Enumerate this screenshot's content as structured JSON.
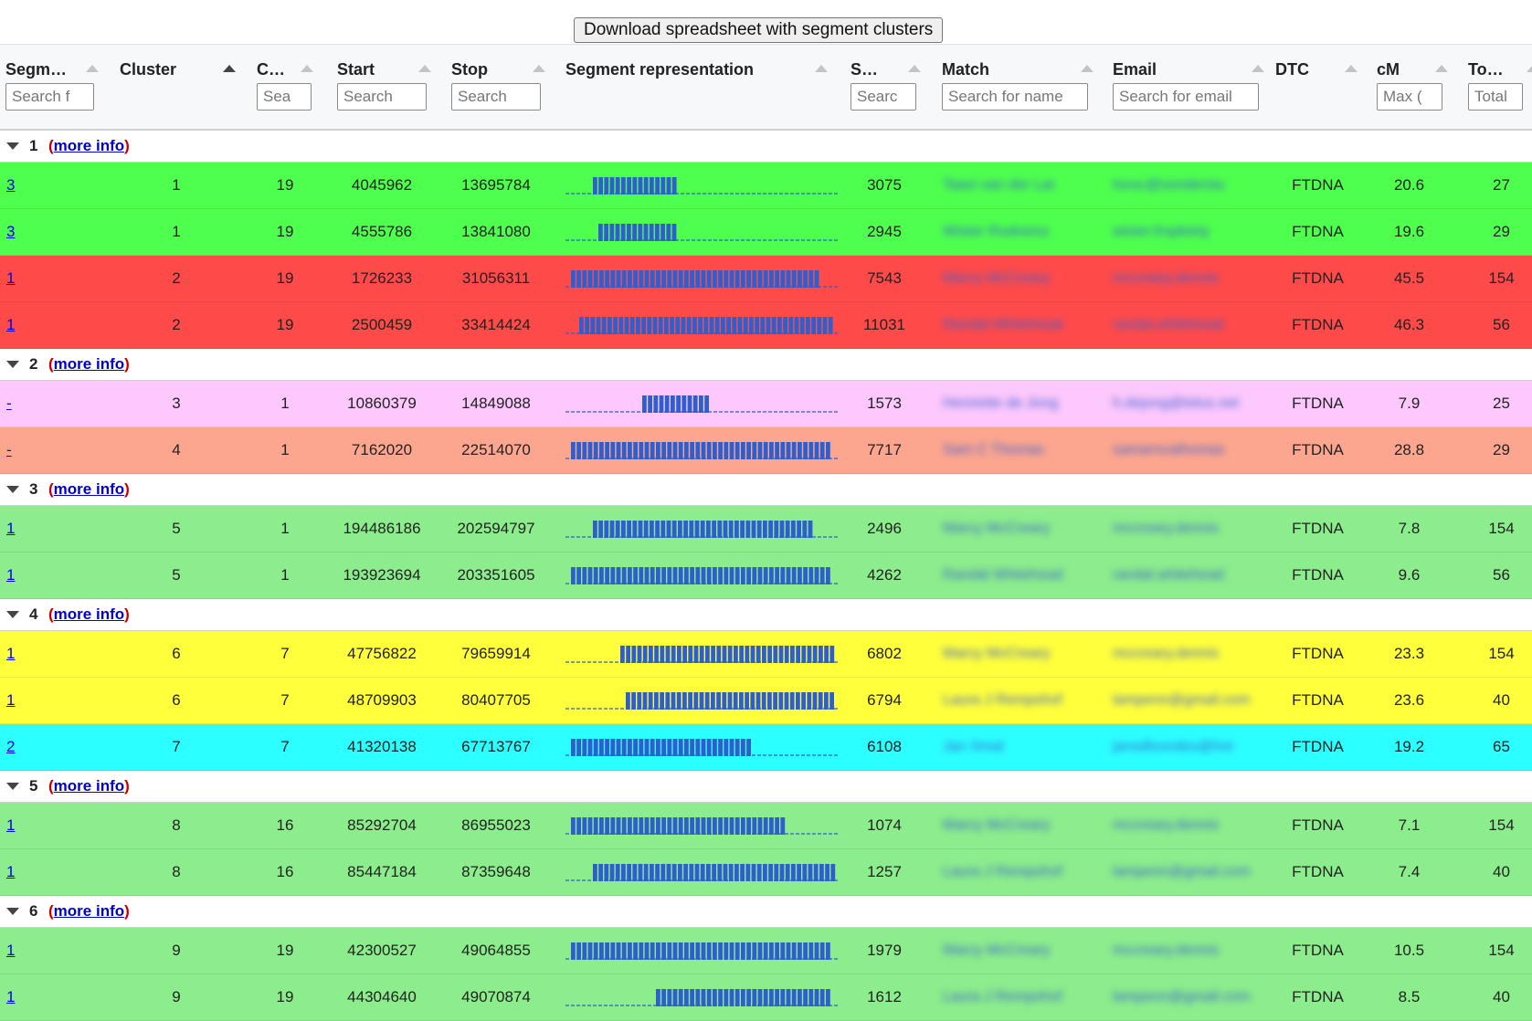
{
  "toolbar": {
    "download_label": "Download spreadsheet with segment clusters"
  },
  "columns": [
    {
      "key": "segm",
      "label": "Segm…",
      "placeholder": "Search f",
      "active": false
    },
    {
      "key": "cluster",
      "label": "Cluster",
      "placeholder": "",
      "active": true
    },
    {
      "key": "chrom",
      "label": "C…",
      "placeholder": "Sea",
      "active": false
    },
    {
      "key": "start",
      "label": "Start",
      "placeholder": "Search",
      "active": false
    },
    {
      "key": "stop",
      "label": "Stop",
      "placeholder": "Search",
      "active": false
    },
    {
      "key": "segrep",
      "label": "Segment representation",
      "placeholder": "",
      "active": false
    },
    {
      "key": "snps",
      "label": "S…",
      "placeholder": "Searc",
      "active": false
    },
    {
      "key": "match",
      "label": "Match",
      "placeholder": "Search for name",
      "active": false
    },
    {
      "key": "email",
      "label": "Email",
      "placeholder": "Search for email",
      "active": false
    },
    {
      "key": "dtc",
      "label": "DTC",
      "placeholder": "",
      "active": false
    },
    {
      "key": "cm",
      "label": "cM",
      "placeholder": "Max (",
      "active": false
    },
    {
      "key": "total",
      "label": "To…",
      "placeholder": "Total",
      "active": false
    }
  ],
  "colors": {
    "green_bright": "#4eff4e",
    "red": "#ff4a4a",
    "pink": "#fdc8fd",
    "salmon": "#fda68f",
    "green_light": "#8ced8c",
    "yellow": "#ffff3c",
    "cyan": "#2cffff",
    "segment_blue": "#2f5fcf"
  },
  "more_info_label": "more info",
  "groups": [
    {
      "num": "1",
      "rows": [
        {
          "segm": "3",
          "cluster": "1",
          "chrom": "19",
          "start": "4045962",
          "stop": "13695784",
          "seg": [
            0.1,
            0.4
          ],
          "snps": "3075",
          "match": "Taavi van der Lat",
          "email": "tsvsc@sonderstu",
          "dtc": "FTDNA",
          "cm": "20.6",
          "total": "27",
          "color": "green_bright"
        },
        {
          "segm": "3",
          "cluster": "1",
          "chrom": "19",
          "start": "4555786",
          "stop": "13841080",
          "seg": [
            0.12,
            0.4
          ],
          "snps": "2945",
          "match": "Wister Rodneiss",
          "email": "wister.fropkiety",
          "dtc": "FTDNA",
          "cm": "19.6",
          "total": "29",
          "color": "green_bright"
        },
        {
          "segm": "1",
          "cluster": "2",
          "chrom": "19",
          "start": "1726233",
          "stop": "31056311",
          "seg": [
            0.02,
            0.93
          ],
          "snps": "7543",
          "match": "Marcy McCreary",
          "email": "mccreary.dennis",
          "dtc": "FTDNA",
          "cm": "45.5",
          "total": "154",
          "color": "red"
        },
        {
          "segm": "1",
          "cluster": "2",
          "chrom": "19",
          "start": "2500459",
          "stop": "33414424",
          "seg": [
            0.05,
            0.98
          ],
          "snps": "11031",
          "match": "Randal Whitehead",
          "email": "randal.whitehead",
          "dtc": "FTDNA",
          "cm": "46.3",
          "total": "56",
          "color": "red"
        }
      ]
    },
    {
      "num": "2",
      "rows": [
        {
          "segm": "-",
          "cluster": "3",
          "chrom": "1",
          "start": "10860379",
          "stop": "14849088",
          "seg": [
            0.28,
            0.53
          ],
          "snps": "1573",
          "match": "Henriette de Jong",
          "email": "h.dejong@telus.net",
          "dtc": "FTDNA",
          "cm": "7.9",
          "total": "25",
          "color": "pink"
        },
        {
          "segm": "-",
          "cluster": "4",
          "chrom": "1",
          "start": "7162020",
          "stop": "22514070",
          "seg": [
            0.02,
            0.98
          ],
          "snps": "7717",
          "match": "Sam C Thomas",
          "email": "samarncathomas",
          "dtc": "FTDNA",
          "cm": "28.8",
          "total": "29",
          "color": "salmon"
        }
      ]
    },
    {
      "num": "3",
      "rows": [
        {
          "segm": "1",
          "cluster": "5",
          "chrom": "1",
          "start": "194486186",
          "stop": "202594797",
          "seg": [
            0.1,
            0.91
          ],
          "snps": "2496",
          "match": "Marcy McCreary",
          "email": "mccreary.dennis",
          "dtc": "FTDNA",
          "cm": "7.8",
          "total": "154",
          "color": "green_light"
        },
        {
          "segm": "1",
          "cluster": "5",
          "chrom": "1",
          "start": "193923694",
          "stop": "203351605",
          "seg": [
            0.02,
            0.98
          ],
          "snps": "4262",
          "match": "Randal Whitehead",
          "email": "randal.whitehead",
          "dtc": "FTDNA",
          "cm": "9.6",
          "total": "56",
          "color": "green_light"
        }
      ]
    },
    {
      "num": "4",
      "rows": [
        {
          "segm": "1",
          "cluster": "6",
          "chrom": "7",
          "start": "47756822",
          "stop": "79659914",
          "seg": [
            0.2,
            0.98
          ],
          "snps": "6802",
          "match": "Marcy McCreary",
          "email": "mccreary.dennis",
          "dtc": "FTDNA",
          "cm": "23.3",
          "total": "154",
          "color": "yellow"
        },
        {
          "segm": "1",
          "cluster": "6",
          "chrom": "7",
          "start": "48709903",
          "stop": "80407705",
          "seg": [
            0.22,
            0.98
          ],
          "snps": "6794",
          "match": "Laura J Rempshof",
          "email": "lampenn@gmail.com",
          "dtc": "FTDNA",
          "cm": "23.6",
          "total": "40",
          "color": "yellow"
        },
        {
          "segm": "2",
          "cluster": "7",
          "chrom": "7",
          "start": "41320138",
          "stop": "67713767",
          "seg": [
            0.02,
            0.68
          ],
          "snps": "6108",
          "match": "Jan Smal",
          "email": "jansdlsondes@hot",
          "dtc": "FTDNA",
          "cm": "19.2",
          "total": "65",
          "color": "cyan"
        }
      ]
    },
    {
      "num": "5",
      "rows": [
        {
          "segm": "1",
          "cluster": "8",
          "chrom": "16",
          "start": "85292704",
          "stop": "86955023",
          "seg": [
            0.02,
            0.8
          ],
          "snps": "1074",
          "match": "Marcy McCreary",
          "email": "mccreary.dennis",
          "dtc": "FTDNA",
          "cm": "7.1",
          "total": "154",
          "color": "green_light"
        },
        {
          "segm": "1",
          "cluster": "8",
          "chrom": "16",
          "start": "85447184",
          "stop": "87359648",
          "seg": [
            0.1,
            0.98
          ],
          "snps": "1257",
          "match": "Laura J Rempshof",
          "email": "lampenn@gmail.com",
          "dtc": "FTDNA",
          "cm": "7.4",
          "total": "40",
          "color": "green_light"
        }
      ]
    },
    {
      "num": "6",
      "rows": [
        {
          "segm": "1",
          "cluster": "9",
          "chrom": "19",
          "start": "42300527",
          "stop": "49064855",
          "seg": [
            0.02,
            0.98
          ],
          "snps": "1979",
          "match": "Marcy McCreary",
          "email": "mccreary.dennis",
          "dtc": "FTDNA",
          "cm": "10.5",
          "total": "154",
          "color": "green_light"
        },
        {
          "segm": "1",
          "cluster": "9",
          "chrom": "19",
          "start": "44304640",
          "stop": "49070874",
          "seg": [
            0.33,
            0.98
          ],
          "snps": "1612",
          "match": "Laura J Rempshof",
          "email": "lampenn@gmail.com",
          "dtc": "FTDNA",
          "cm": "8.5",
          "total": "40",
          "color": "green_light"
        }
      ]
    }
  ]
}
